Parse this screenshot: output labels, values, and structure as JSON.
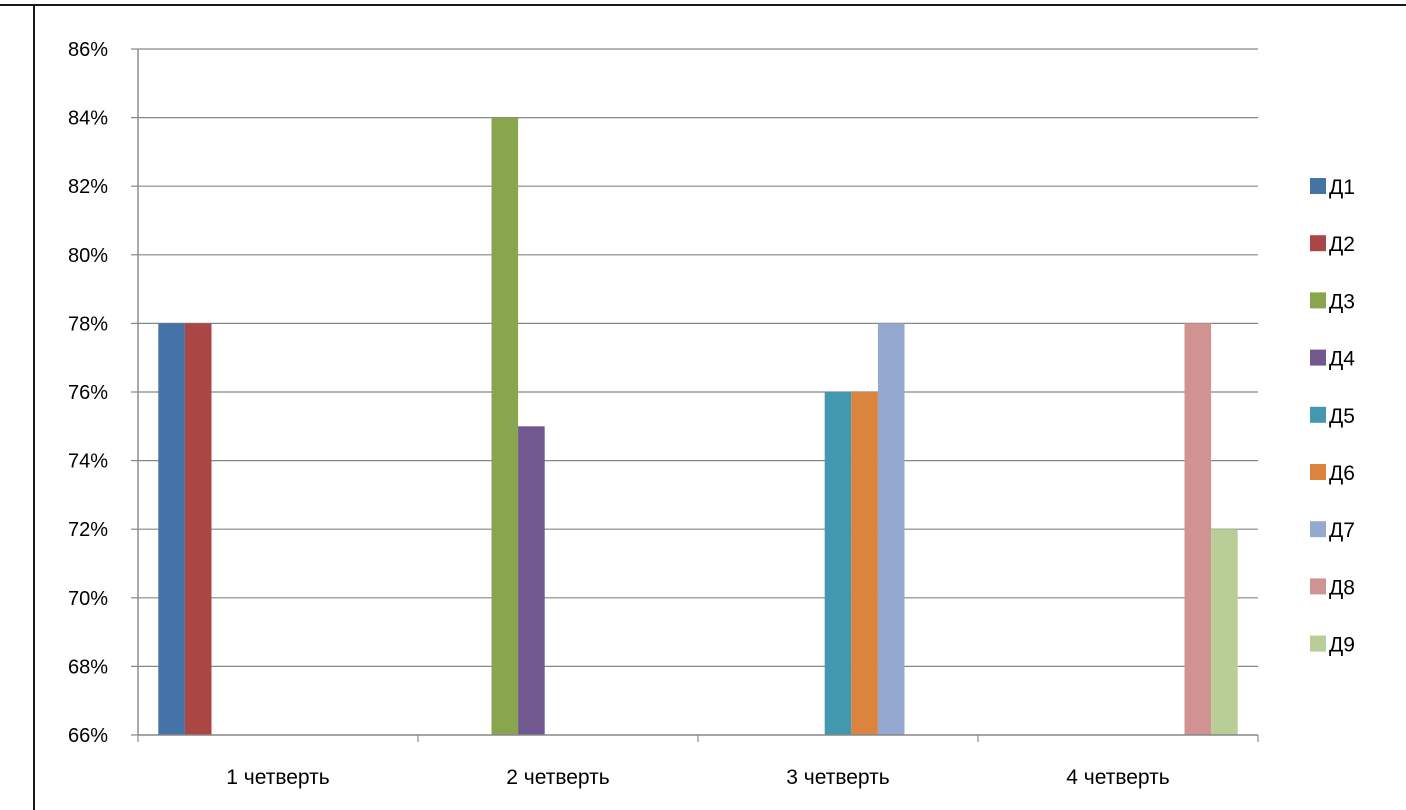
{
  "chart_data": {
    "type": "bar",
    "categories": [
      "1 четверть",
      "2 четверть",
      "3 четверть",
      "4 четверть"
    ],
    "ylim": [
      0.66,
      0.86
    ],
    "yticks": [
      0.66,
      0.68,
      0.7,
      0.72,
      0.74,
      0.76,
      0.78,
      0.8,
      0.82,
      0.84,
      0.86
    ],
    "ytick_labels": [
      "66%",
      "68%",
      "70%",
      "72%",
      "74%",
      "76%",
      "78%",
      "80%",
      "82%",
      "84%",
      "86%"
    ],
    "grid": true,
    "legend_position": "right",
    "series": [
      {
        "name": "Д1",
        "color": "#4572A7",
        "values": [
          0.78,
          null,
          null,
          null
        ]
      },
      {
        "name": "Д2",
        "color": "#AA4643",
        "values": [
          0.78,
          null,
          null,
          null
        ]
      },
      {
        "name": "Д3",
        "color": "#89A54E",
        "values": [
          null,
          0.84,
          null,
          null
        ]
      },
      {
        "name": "Д4",
        "color": "#71588F",
        "values": [
          null,
          0.75,
          null,
          null
        ]
      },
      {
        "name": "Д5",
        "color": "#4198AF",
        "values": [
          null,
          null,
          0.76,
          null
        ]
      },
      {
        "name": "Д6",
        "color": "#DB843D",
        "values": [
          null,
          null,
          0.76,
          null
        ]
      },
      {
        "name": "Д7",
        "color": "#93A9CF",
        "values": [
          null,
          null,
          0.78,
          null
        ]
      },
      {
        "name": "Д8",
        "color": "#D19392",
        "values": [
          null,
          null,
          null,
          0.78
        ]
      },
      {
        "name": "Д9",
        "color": "#B9CD96",
        "values": [
          null,
          null,
          null,
          0.72
        ]
      }
    ]
  }
}
